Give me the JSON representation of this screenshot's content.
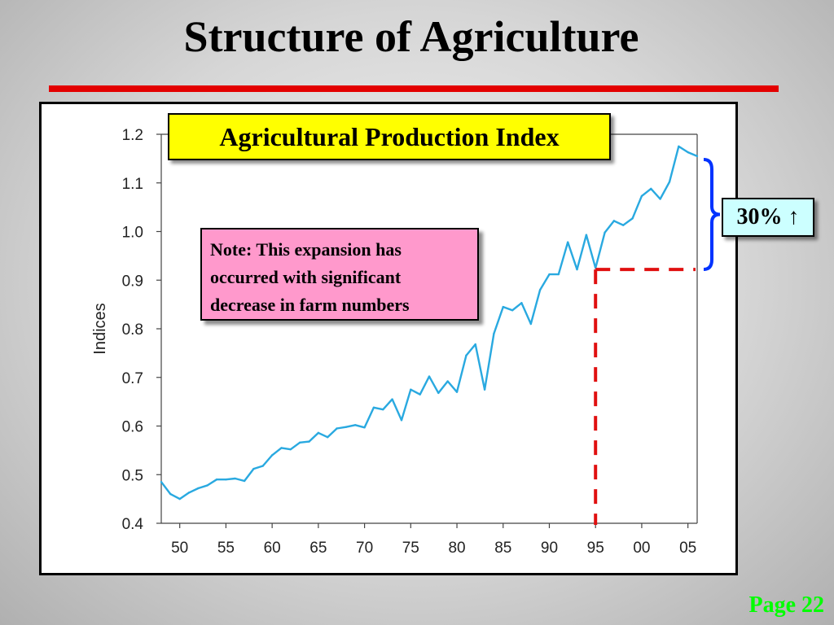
{
  "slide": {
    "title": "Structure of Agriculture",
    "page_label": "Page 22"
  },
  "colors": {
    "title_rule": "#e30000",
    "series_line": "#29a9e0",
    "marker_dash": "#e01010",
    "brace": "#0033ff",
    "title_box": "#ffff00",
    "note_box": "#ff99cc",
    "badge_box": "#ccffff",
    "page_label": "#00ff00"
  },
  "annotations": {
    "chart_title": "Agricultural Production Index",
    "note_lines": [
      "Note:  This expansion has",
      "occurred with significant",
      "decrease in farm numbers"
    ],
    "growth_badge": "30% ↑"
  },
  "chart_data": {
    "type": "line",
    "title": "Agricultural Production Index",
    "xlabel": "",
    "ylabel": "Indices",
    "xlim": [
      1948,
      2006
    ],
    "ylim": [
      0.4,
      1.2
    ],
    "x_ticks": [
      1950,
      1955,
      1960,
      1965,
      1970,
      1975,
      1980,
      1985,
      1990,
      1995,
      2000,
      2005
    ],
    "x_tick_labels": [
      "50",
      "55",
      "60",
      "65",
      "70",
      "75",
      "80",
      "85",
      "90",
      "95",
      "00",
      "05"
    ],
    "y_ticks": [
      0.4,
      0.5,
      0.6,
      0.7,
      0.8,
      0.9,
      1.0,
      1.1,
      1.2
    ],
    "y_tick_labels": [
      "0.4",
      "0.5",
      "0.6",
      "0.7",
      "0.8",
      "0.9",
      "1.0",
      "1.1",
      "1.2"
    ],
    "grid": false,
    "series": [
      {
        "x": [
          1948,
          1949,
          1950,
          1951,
          1952,
          1953,
          1954,
          1955,
          1956,
          1957,
          1958,
          1959,
          1960,
          1961,
          1962,
          1963,
          1964,
          1965,
          1966,
          1967,
          1968,
          1969,
          1970,
          1971,
          1972,
          1973,
          1974,
          1975,
          1976,
          1977,
          1978,
          1979,
          1980,
          1981,
          1982,
          1983,
          1984,
          1985,
          1986,
          1987,
          1988,
          1989,
          1990,
          1991,
          1992,
          1993,
          1994,
          1995,
          1996,
          1997,
          1998,
          1999,
          2000,
          2001,
          2002,
          2003,
          2004,
          2005,
          2006
        ],
        "values": [
          0.485,
          0.46,
          0.45,
          0.463,
          0.472,
          0.478,
          0.49,
          0.49,
          0.492,
          0.487,
          0.512,
          0.518,
          0.54,
          0.555,
          0.552,
          0.566,
          0.568,
          0.586,
          0.577,
          0.595,
          0.598,
          0.602,
          0.597,
          0.638,
          0.634,
          0.655,
          0.612,
          0.675,
          0.665,
          0.702,
          0.668,
          0.692,
          0.67,
          0.745,
          0.768,
          0.675,
          0.79,
          0.845,
          0.838,
          0.853,
          0.81,
          0.88,
          0.912,
          0.912,
          0.978,
          0.922,
          0.993,
          0.925,
          0.998,
          1.022,
          1.013,
          1.027,
          1.073,
          1.088,
          1.067,
          1.102,
          1.175,
          1.163,
          1.155
        ]
      }
    ],
    "reference_x": 1995,
    "reference_y": 0.922
  }
}
